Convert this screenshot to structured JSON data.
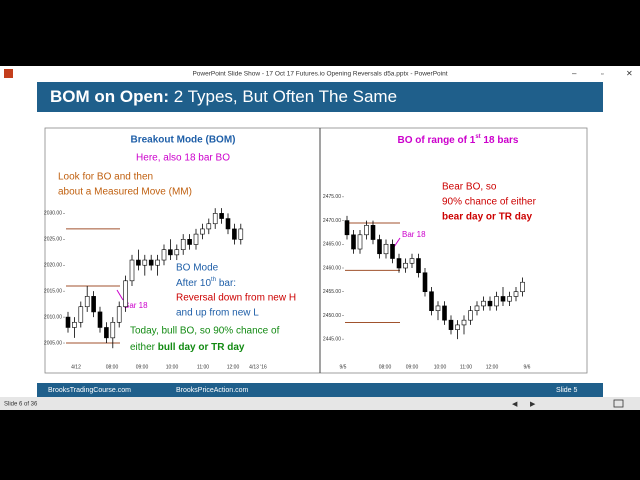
{
  "window": {
    "title": "PowerPoint Slide Show  -  17 Oct 17 Futures.io Opening Reversals d5a.pptx  -  PowerPoint"
  },
  "slide": {
    "title_bold": "BOM on Open:",
    "title_rest": " 2 Types, But Often The Same"
  },
  "footer": {
    "left": "BrooksTradingCourse.com",
    "middle": "BrooksPriceAction.com",
    "right": "Slide  5"
  },
  "status": {
    "left": "Slide 6 of 36"
  },
  "left_chart": {
    "heading": "Breakout Mode (BOM)",
    "subheading": "Here, also 18 bar BO",
    "look1": "Look for BO and then",
    "look2": "about a Measured Move (MM)",
    "bar18": "Bar 18",
    "bo_mode": "BO Mode",
    "after": [
      "After 10",
      "th",
      " bar:"
    ],
    "reversal1": "Reversal down from new H",
    "reversal2": "and up from new L",
    "today1": "Today, bull BO, so 90% chance of",
    "today2": [
      "either ",
      "bull day or TR day"
    ],
    "ylim": [
      2002.5,
      2032
    ],
    "yticks": [
      {
        "value": 2030,
        "label": "2030.00"
      },
      {
        "value": 2025,
        "label": "2025.00"
      },
      {
        "value": 2020,
        "label": "2020.00"
      },
      {
        "value": 2015,
        "label": "2015.00"
      },
      {
        "value": 2010,
        "label": "2010.00"
      },
      {
        "value": 2005,
        "label": "2005.00"
      }
    ],
    "xlabels": [
      "4/12",
      "08:00",
      "09:00",
      "10:00",
      "11:00",
      "12:00",
      "4/13 '16"
    ],
    "levels": [
      2027,
      2016,
      2005
    ],
    "candles": [
      [
        2010,
        2011,
        2007,
        2008
      ],
      [
        2008,
        2010,
        2006,
        2009
      ],
      [
        2009,
        2013,
        2008,
        2012
      ],
      [
        2012,
        2016,
        2011,
        2014
      ],
      [
        2014,
        2015,
        2010,
        2011
      ],
      [
        2011,
        2012,
        2007,
        2008
      ],
      [
        2008,
        2009,
        2005,
        2006
      ],
      [
        2006,
        2010,
        2004,
        2009
      ],
      [
        2009,
        2013,
        2008,
        2012
      ],
      [
        2012,
        2018,
        2011,
        2017
      ],
      [
        2017,
        2022,
        2016,
        2021
      ],
      [
        2021,
        2023,
        2019,
        2020
      ],
      [
        2020,
        2022,
        2018,
        2021
      ],
      [
        2021,
        2022,
        2019,
        2020
      ],
      [
        2020,
        2022,
        2018,
        2021
      ],
      [
        2021,
        2024,
        2020,
        2023
      ],
      [
        2023,
        2025,
        2021,
        2022
      ],
      [
        2022,
        2024,
        2021,
        2023
      ],
      [
        2023,
        2026,
        2022,
        2025
      ],
      [
        2025,
        2026,
        2023,
        2024
      ],
      [
        2024,
        2027,
        2023,
        2026
      ],
      [
        2026,
        2028,
        2025,
        2027
      ],
      [
        2027,
        2029,
        2026,
        2028
      ],
      [
        2028,
        2031,
        2027,
        2030
      ],
      [
        2030,
        2031,
        2028,
        2029
      ],
      [
        2029,
        2030,
        2026,
        2027
      ],
      [
        2027,
        2028,
        2024,
        2025
      ],
      [
        2025,
        2028,
        2024,
        2027
      ]
    ]
  },
  "right_chart": {
    "heading": [
      "BO of range of 1",
      "st",
      " 18 bars"
    ],
    "bear1": "Bear BO, so",
    "bear2": "90% chance of either",
    "bear3": "bear day or TR day",
    "bar18": "Bar 18",
    "ylim": [
      2442.5,
      2477.5
    ],
    "yticks": [
      {
        "value": 2475,
        "label": "2475.00"
      },
      {
        "value": 2470,
        "label": "2470.00"
      },
      {
        "value": 2465,
        "label": "2465.00"
      },
      {
        "value": 2460,
        "label": "2460.00"
      },
      {
        "value": 2455,
        "label": "2455.00"
      },
      {
        "value": 2450,
        "label": "2450.00"
      },
      {
        "value": 2445,
        "label": "2445.00"
      }
    ],
    "xlabels": [
      "9/5",
      "08:00",
      "09:00",
      "10:00",
      "11:00",
      "12:00",
      "9/6"
    ],
    "levels": [
      2469.5,
      2459.5,
      2448.5
    ],
    "candles": [
      [
        2470,
        2471,
        2466,
        2467
      ],
      [
        2467,
        2468,
        2463,
        2464
      ],
      [
        2464,
        2468,
        2463,
        2467
      ],
      [
        2467,
        2470,
        2466,
        2469
      ],
      [
        2469,
        2470,
        2465,
        2466
      ],
      [
        2466,
        2467,
        2462,
        2463
      ],
      [
        2463,
        2466,
        2462,
        2465
      ],
      [
        2465,
        2466,
        2461,
        2462
      ],
      [
        2462,
        2463,
        2459,
        2460
      ],
      [
        2460,
        2462,
        2459,
        2461
      ],
      [
        2461,
        2463,
        2460,
        2462
      ],
      [
        2462,
        2463,
        2458,
        2459
      ],
      [
        2459,
        2460,
        2454,
        2455
      ],
      [
        2455,
        2456,
        2450,
        2451
      ],
      [
        2451,
        2453,
        2449,
        2452
      ],
      [
        2452,
        2453,
        2448,
        2449
      ],
      [
        2449,
        2450,
        2446,
        2447
      ],
      [
        2447,
        2449,
        2445,
        2448
      ],
      [
        2448,
        2450,
        2446,
        2449
      ],
      [
        2449,
        2452,
        2448,
        2451
      ],
      [
        2451,
        2453,
        2450,
        2452
      ],
      [
        2452,
        2454,
        2451,
        2453
      ],
      [
        2453,
        2454,
        2451,
        2452
      ],
      [
        2452,
        2455,
        2451,
        2454
      ],
      [
        2454,
        2456,
        2452,
        2453
      ],
      [
        2453,
        2455,
        2452,
        2454
      ],
      [
        2454,
        2456,
        2453,
        2455
      ],
      [
        2455,
        2458,
        2454,
        2457
      ]
    ]
  }
}
